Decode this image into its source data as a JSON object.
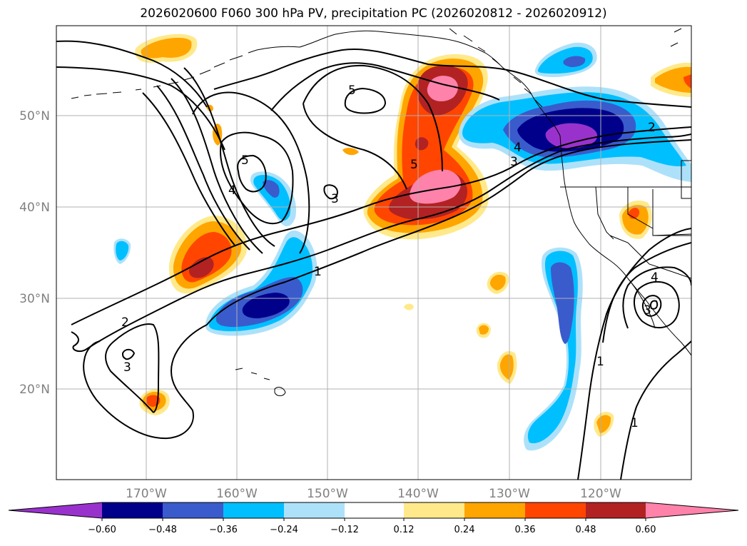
{
  "title": "2026020600 F060 300 hPa PV, precipitation PC (2026020812 - 2026020912)",
  "map": {
    "lat_labels": [
      "50°N",
      "40°N",
      "30°N",
      "20°N"
    ],
    "lon_labels": [
      "170°W",
      "160°W",
      "150°W",
      "140°W",
      "130°W",
      "120°W"
    ],
    "contour_labels": [
      "5",
      "5",
      "5",
      "4",
      "4",
      "4",
      "3",
      "3",
      "3",
      "3",
      "2",
      "2",
      "1",
      "1",
      "1"
    ]
  },
  "colorbar": {
    "ticks": [
      "−0.60",
      "−0.48",
      "−0.36",
      "−0.24",
      "−0.12",
      "0.12",
      "0.24",
      "0.36",
      "0.48",
      "0.60"
    ],
    "colors": [
      "#9932CC",
      "#00008B",
      "#3A5BCC",
      "#00BFFF",
      "#ADE1FA",
      "#FFFFFF",
      "#FFE98A",
      "#FFA500",
      "#FF4500",
      "#B22222",
      "#FF82AB"
    ]
  }
}
